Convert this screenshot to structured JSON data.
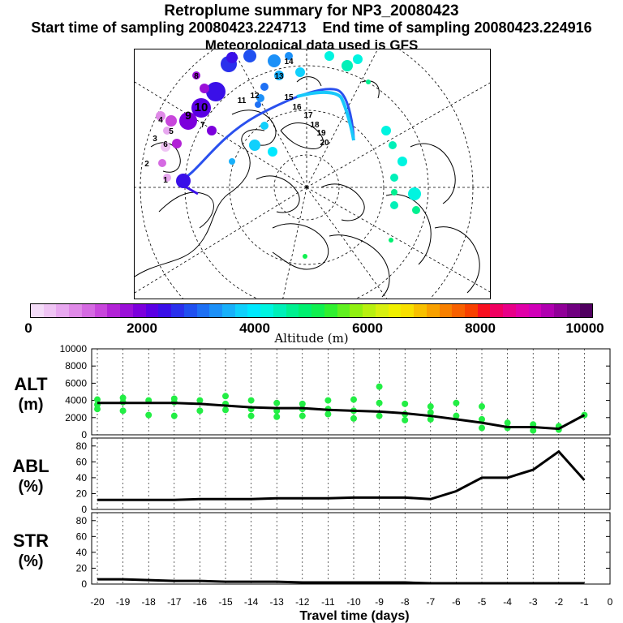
{
  "title": "Retroplume summary for NP3_20080423",
  "subtitle_start": "Start time of sampling 20080423.224713",
  "subtitle_end": "End time of sampling 20080423.224916",
  "met_line": "Meteorological data used is GFS",
  "colorbar": {
    "label": "Altitude (m)",
    "ticks": [
      "0",
      "2000",
      "4000",
      "6000",
      "8000",
      "10000"
    ],
    "colors": [
      "#f4dcf8",
      "#efc4f4",
      "#e8a8f0",
      "#e08ae8",
      "#d56ae2",
      "#c846dc",
      "#b223d6",
      "#9a10d8",
      "#7c00dc",
      "#5a00e4",
      "#3a10e8",
      "#2a30ec",
      "#2050f0",
      "#1e70f4",
      "#1c90f8",
      "#18b0fa",
      "#10d0fc",
      "#00e8ff",
      "#00f4e0",
      "#00f0b8",
      "#00f090",
      "#00f070",
      "#10f050",
      "#30f030",
      "#60f020",
      "#90f010",
      "#b8f010",
      "#d8f010",
      "#f0f000",
      "#f8e000",
      "#f8c000",
      "#f8a000",
      "#f88000",
      "#f86000",
      "#f84000",
      "#f81020",
      "#f00060",
      "#e80088",
      "#e000a8",
      "#d000b8",
      "#b000b0",
      "#900098",
      "#700080",
      "#500060"
    ]
  },
  "map": {
    "numbers": [
      "1",
      "2",
      "3",
      "4",
      "5",
      "6",
      "7",
      "8",
      "9",
      "10",
      "11",
      "12",
      "13",
      "14",
      "15",
      "16",
      "17",
      "18",
      "19",
      "20"
    ]
  },
  "chart_data": [
    {
      "type": "line",
      "name": "ALT",
      "ylabel_line1": "ALT",
      "ylabel_line2": "(m)",
      "ylim": [
        0,
        10000
      ],
      "yticks": [
        "0",
        "2000",
        "4000",
        "6000",
        "8000",
        "10000"
      ],
      "x": [
        -20,
        -19,
        -18,
        -17,
        -16,
        -15,
        -14,
        -13,
        -12,
        -11,
        -10,
        -9,
        -8,
        -7,
        -6,
        -5,
        -4,
        -3,
        -2,
        -1
      ],
      "values": [
        3700,
        3700,
        3700,
        3700,
        3600,
        3400,
        3200,
        3100,
        3100,
        2900,
        2800,
        2700,
        2500,
        2200,
        1800,
        1400,
        900,
        900,
        700,
        2300
      ],
      "scatter_color": "#22ee44",
      "scatter": [
        {
          "x": -20,
          "y": 4100
        },
        {
          "x": -20,
          "y": 3500
        },
        {
          "x": -20,
          "y": 3000
        },
        {
          "x": -19,
          "y": 4300
        },
        {
          "x": -19,
          "y": 3800
        },
        {
          "x": -19,
          "y": 2800
        },
        {
          "x": -18,
          "y": 4000
        },
        {
          "x": -18,
          "y": 2300
        },
        {
          "x": -17,
          "y": 4200
        },
        {
          "x": -17,
          "y": 3800
        },
        {
          "x": -17,
          "y": 2200
        },
        {
          "x": -16,
          "y": 4000
        },
        {
          "x": -16,
          "y": 2800
        },
        {
          "x": -15,
          "y": 4500
        },
        {
          "x": -15,
          "y": 3600
        },
        {
          "x": -15,
          "y": 2900
        },
        {
          "x": -14,
          "y": 4000
        },
        {
          "x": -14,
          "y": 3000
        },
        {
          "x": -14,
          "y": 2200
        },
        {
          "x": -13,
          "y": 3700
        },
        {
          "x": -13,
          "y": 2800
        },
        {
          "x": -13,
          "y": 2100
        },
        {
          "x": -12,
          "y": 3600
        },
        {
          "x": -12,
          "y": 3000
        },
        {
          "x": -12,
          "y": 2200
        },
        {
          "x": -11,
          "y": 4000
        },
        {
          "x": -11,
          "y": 3000
        },
        {
          "x": -11,
          "y": 2400
        },
        {
          "x": -10,
          "y": 4100
        },
        {
          "x": -10,
          "y": 2800
        },
        {
          "x": -10,
          "y": 1900
        },
        {
          "x": -9,
          "y": 5600
        },
        {
          "x": -9,
          "y": 3700
        },
        {
          "x": -9,
          "y": 2200
        },
        {
          "x": -8,
          "y": 3600
        },
        {
          "x": -8,
          "y": 2400
        },
        {
          "x": -8,
          "y": 1700
        },
        {
          "x": -7,
          "y": 3300
        },
        {
          "x": -7,
          "y": 2600
        },
        {
          "x": -7,
          "y": 1800
        },
        {
          "x": -6,
          "y": 3700
        },
        {
          "x": -6,
          "y": 2200
        },
        {
          "x": -5,
          "y": 3300
        },
        {
          "x": -5,
          "y": 1800
        },
        {
          "x": -5,
          "y": 800
        },
        {
          "x": -4,
          "y": 1400
        },
        {
          "x": -4,
          "y": 800
        },
        {
          "x": -3,
          "y": 1200
        },
        {
          "x": -3,
          "y": 500
        },
        {
          "x": -2,
          "y": 1000
        },
        {
          "x": -2,
          "y": 600
        },
        {
          "x": -1,
          "y": 2300
        }
      ]
    },
    {
      "type": "line",
      "name": "ABL",
      "ylabel_line1": "ABL",
      "ylabel_line2": "(%)",
      "ylim": [
        0,
        90
      ],
      "yticks": [
        "0",
        "20",
        "40",
        "60",
        "80"
      ],
      "x": [
        -20,
        -19,
        -18,
        -17,
        -16,
        -15,
        -14,
        -13,
        -12,
        -11,
        -10,
        -9,
        -8,
        -7,
        -6,
        -5,
        -4,
        -3,
        -2,
        -1
      ],
      "values": [
        12,
        12,
        12,
        12,
        13,
        13,
        13,
        14,
        14,
        14,
        15,
        15,
        15,
        13,
        23,
        40,
        40,
        50,
        73,
        37
      ]
    },
    {
      "type": "line",
      "name": "STR",
      "ylabel_line1": "STR",
      "ylabel_line2": "(%)",
      "ylim": [
        0,
        90
      ],
      "yticks": [
        "0",
        "20",
        "40",
        "60",
        "80"
      ],
      "x": [
        -20,
        -19,
        -18,
        -17,
        -16,
        -15,
        -14,
        -13,
        -12,
        -11,
        -10,
        -9,
        -8,
        -7,
        -6,
        -5,
        -4,
        -3,
        -2,
        -1
      ],
      "values": [
        6,
        6,
        5,
        4,
        4,
        3,
        3,
        3,
        2,
        2,
        2,
        2,
        2,
        1,
        1,
        1,
        1,
        1,
        1,
        1
      ]
    }
  ],
  "xaxis": {
    "label": "Travel time (days)",
    "ticks": [
      "-20",
      "-19",
      "-18",
      "-17",
      "-16",
      "-15",
      "-14",
      "-13",
      "-12",
      "-11",
      "-10",
      "-9",
      "-8",
      "-7",
      "-6",
      "-5",
      "-4",
      "-3",
      "-2",
      "-1",
      "0"
    ]
  }
}
